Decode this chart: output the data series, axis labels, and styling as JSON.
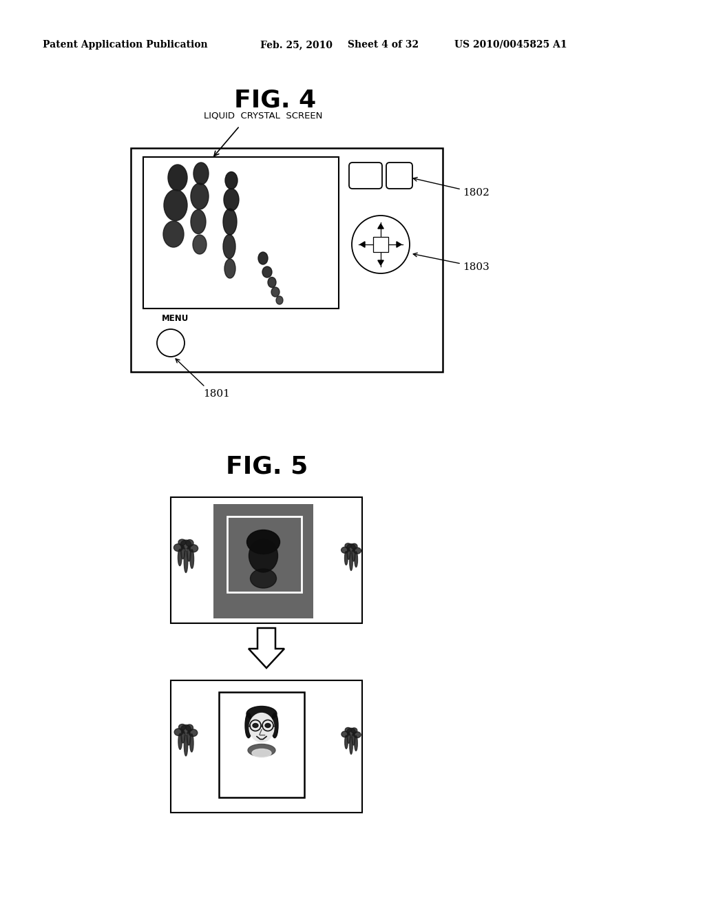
{
  "bg_color": "#ffffff",
  "header_text": "Patent Application Publication",
  "header_date": "Feb. 25, 2010",
  "header_sheet": "Sheet 4 of 32",
  "header_patent": "US 2010/0045825 A1",
  "fig4_title": "FIG. 4",
  "fig5_title": "FIG. 5",
  "label_liquid_crystal": "LIQUID  CRYSTAL  SCREEN",
  "label_menu": "MENU",
  "label_1801": "1801",
  "label_1802": "1802",
  "label_1803": "1803"
}
